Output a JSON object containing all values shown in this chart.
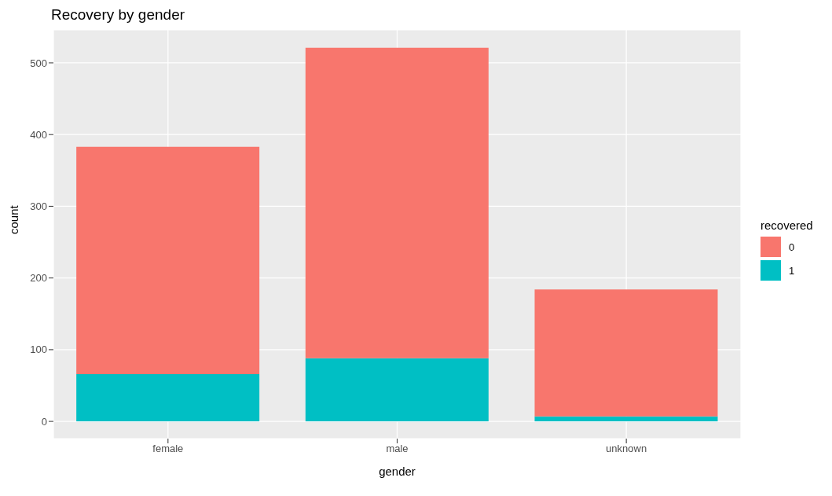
{
  "chart_data": {
    "type": "bar",
    "title": "Recovery by gender",
    "xlabel": "gender",
    "ylabel": "count",
    "legend_title": "recovered",
    "categories": [
      "female",
      "male",
      "unknown"
    ],
    "stacked": true,
    "series": [
      {
        "name": "1",
        "color": "#00bfc4",
        "values": [
          66,
          88,
          7
        ]
      },
      {
        "name": "0",
        "color": "#f8766d",
        "values": [
          317,
          433,
          177
        ]
      }
    ],
    "ylim": [
      -24,
      546
    ],
    "yticks": [
      0,
      100,
      200,
      300,
      400,
      500
    ],
    "grid": true,
    "legend": "right"
  }
}
